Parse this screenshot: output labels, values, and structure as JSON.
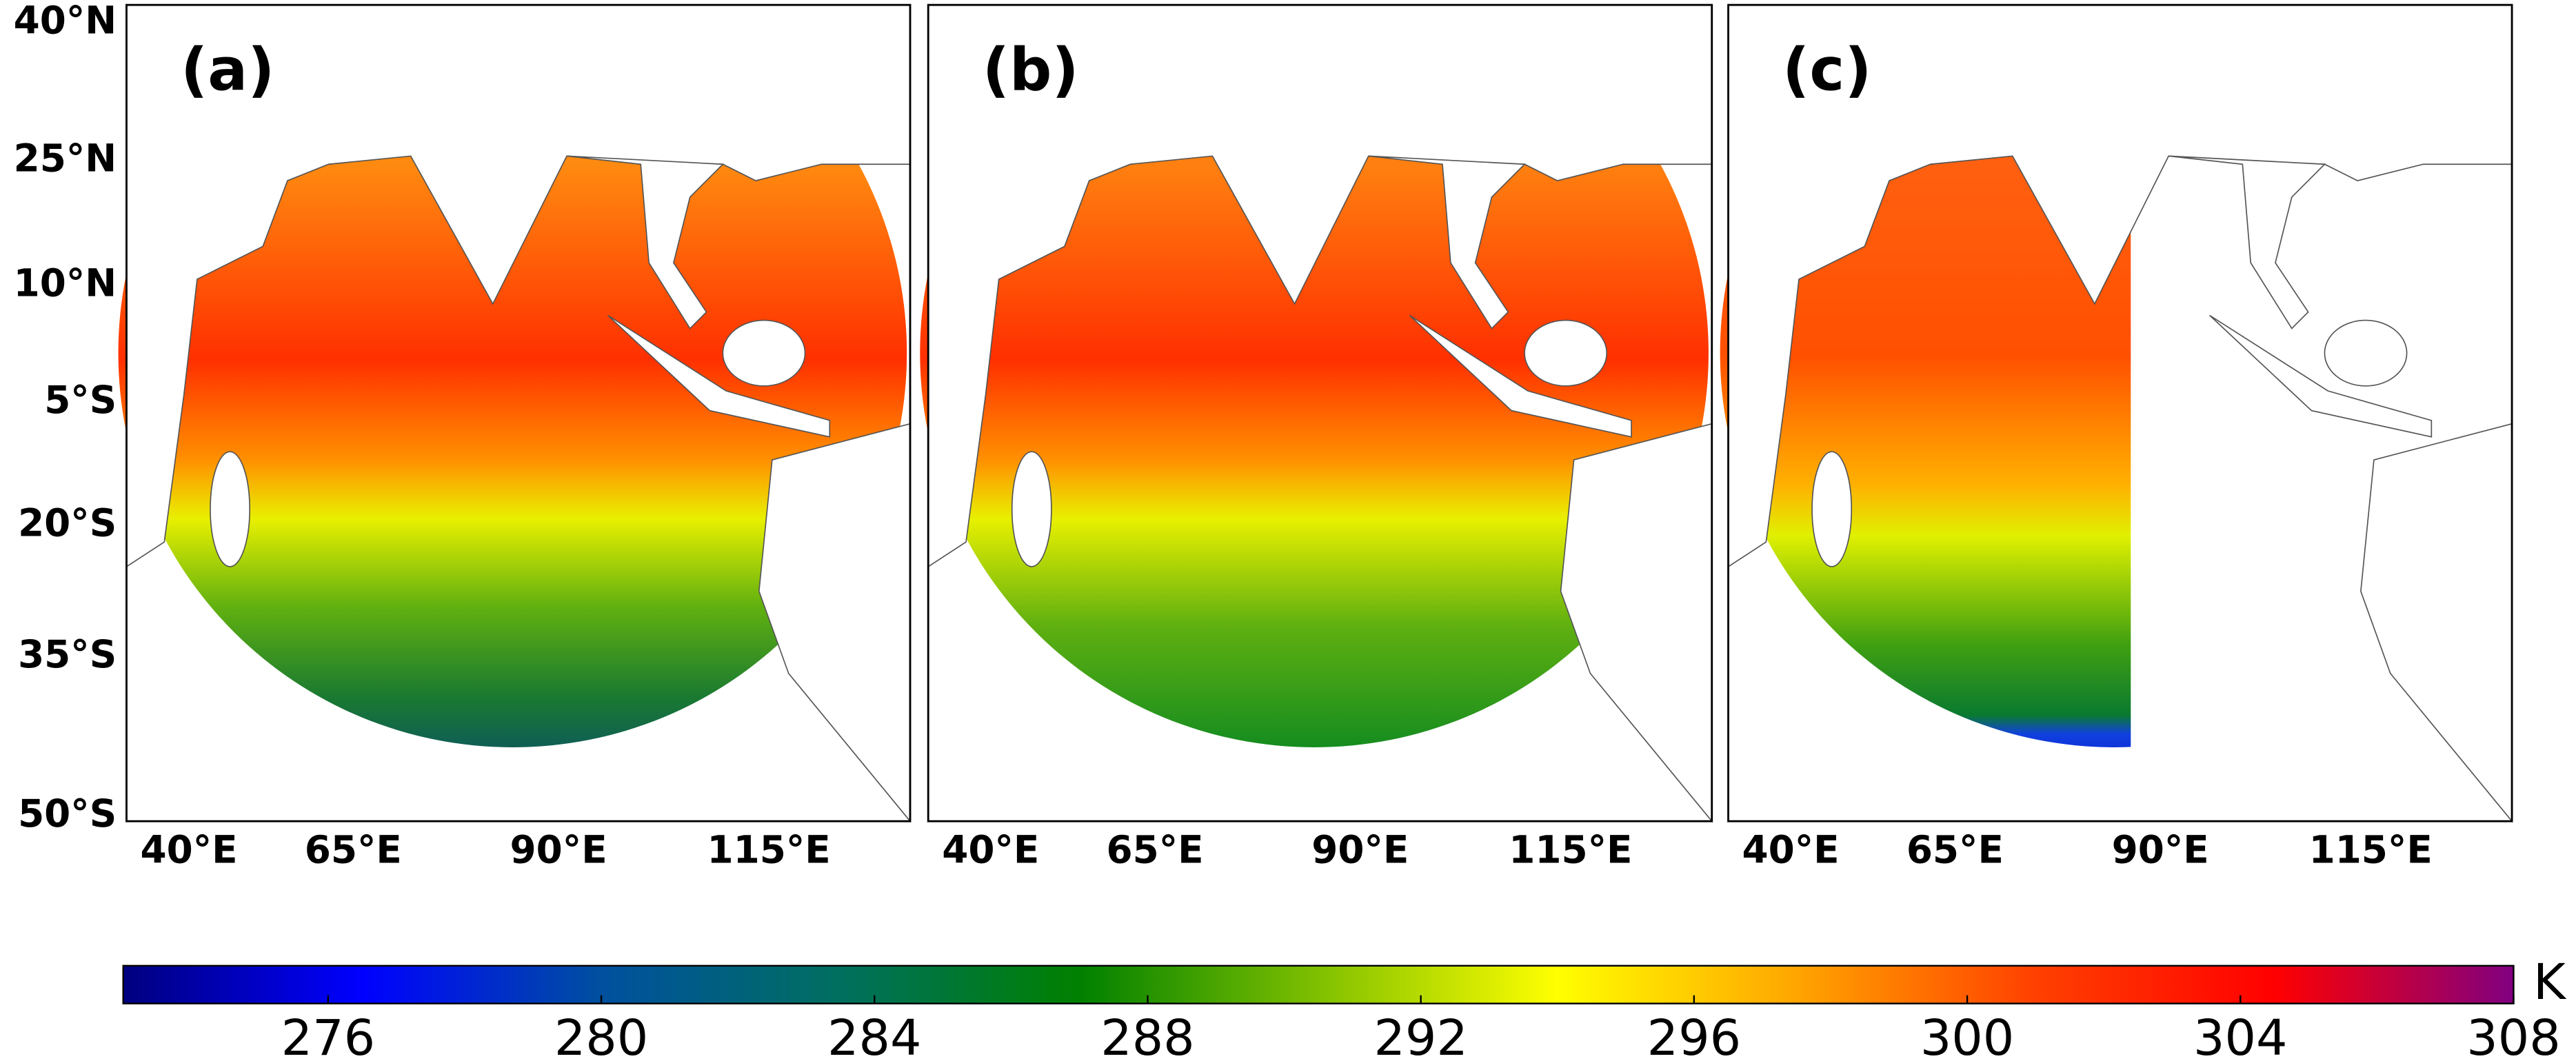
{
  "panels": [
    {
      "label": "(a)"
    },
    {
      "label": "(b)"
    },
    {
      "label": "(c)"
    }
  ],
  "lat_labels": [
    "40°N",
    "25°N",
    "10°N",
    "5°S",
    "20°S",
    "35°S",
    "50°S"
  ],
  "lon_labels": [
    "40°E",
    "65°E",
    "90°E",
    "115°E"
  ],
  "colorbar": {
    "range": [
      273,
      308
    ],
    "ticks": [
      276,
      280,
      284,
      288,
      292,
      296,
      300,
      304,
      308
    ],
    "unit": "K",
    "colormap": [
      "#00007f",
      "#0000ff",
      "#00509f",
      "#006f5f",
      "#008000",
      "#80c000",
      "#ffff00",
      "#ffa500",
      "#ff4000",
      "#ff0000",
      "#800080"
    ]
  }
}
